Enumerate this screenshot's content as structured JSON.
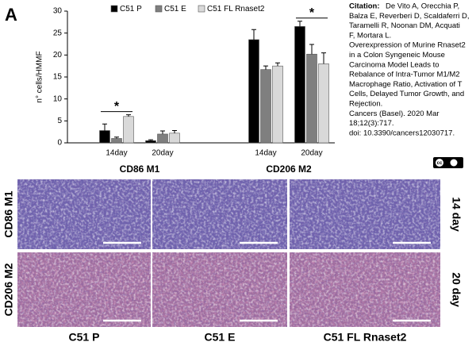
{
  "panel_label": "A",
  "chart_data": {
    "type": "bar",
    "ylabel": "n° cells/HMMF",
    "categories": [
      "14day",
      "20day",
      "14day",
      "20day"
    ],
    "groups": [
      "CD86 M1",
      "CD206 M2"
    ],
    "series": [
      {
        "name": "C51 P",
        "color": "#000000",
        "values": [
          2.8,
          0.5,
          23.5,
          26.5
        ],
        "errors": [
          1.5,
          0.2,
          2.3,
          1.2
        ]
      },
      {
        "name": "C51 E",
        "color": "#7f7f7f",
        "values": [
          1.0,
          2.0,
          16.7,
          20.2
        ],
        "errors": [
          0.3,
          0.7,
          0.8,
          2.2
        ]
      },
      {
        "name": "C51 FL Rnaset2",
        "color": "#d9d9d9",
        "values": [
          6.0,
          2.2,
          17.5,
          18.0
        ],
        "errors": [
          0.4,
          0.6,
          0.7,
          2.5
        ]
      }
    ],
    "ylim": [
      0,
      30
    ],
    "yticks": [
      0,
      5,
      10,
      15,
      20,
      25,
      30
    ],
    "annotations": [
      "*",
      "*"
    ]
  },
  "citation": {
    "label": "Citation:",
    "lines": [
      "De Vito A, Orecchia P,",
      "Balza E, Reverberi D, Scaldaferri D,",
      "Taramelli R, Noonan DM, Acquati",
      "F, Mortara L.",
      "Overexpression of Murine Rnaset2",
      "in a Colon Syngeneic Mouse",
      "Carcinoma Model Leads to",
      "Rebalance of Intra-Tumor M1/M2",
      "Macrophage Ratio, Activation of T",
      "Cells, Delayed Tumor Growth, and",
      "Rejection.",
      "Cancers (Basel). 2020 Mar",
      "18;12(3):717.",
      "doi: 10.3390/cancers12030717."
    ]
  },
  "figure": {
    "rows": [
      "CD86 M1",
      "CD206 M2"
    ],
    "row_labels_right": [
      "14 day",
      "20 day"
    ],
    "columns": [
      "C51 P",
      "C51 E",
      "C51 FL Rnaset2"
    ]
  }
}
